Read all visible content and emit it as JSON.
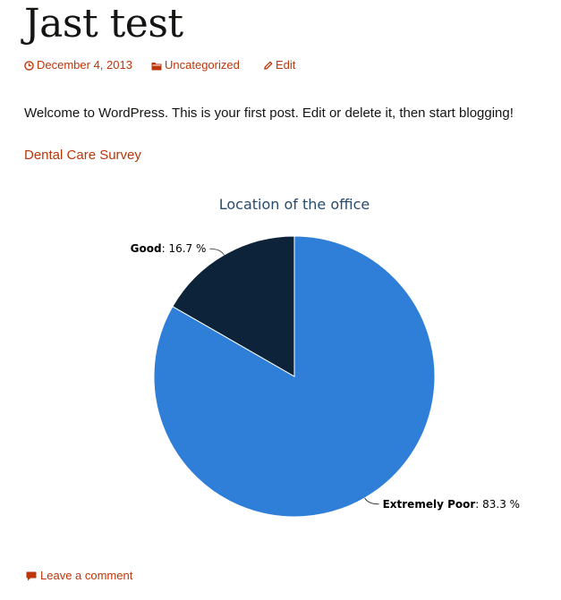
{
  "post": {
    "title": "Jast test",
    "meta": {
      "date": "December 4, 2013",
      "category": "Uncategorized",
      "edit": "Edit"
    },
    "body_text": "Welcome to WordPress. This is your first post. Edit or delete it, then start blogging!",
    "survey_link": "Dental Care Survey",
    "comment_link": "Leave a comment"
  },
  "icons": {
    "date": "clock-icon",
    "category": "folder-icon",
    "edit": "pencil-icon",
    "comment": "speech-bubble-icon"
  },
  "colors": {
    "link": "#bc360a",
    "title_text": "#141412",
    "chart_title": "#274b6d",
    "slice_extremely_poor": "#2f7ed8",
    "slice_good": "#0d233a"
  },
  "chart_data": {
    "type": "pie",
    "title": "Location of the office",
    "slices": [
      {
        "name": "Good",
        "value": 16.7,
        "label": "16.7 %",
        "color": "#0d233a"
      },
      {
        "name": "Extremely Poor",
        "value": 83.3,
        "label": "83.3 %",
        "color": "#2f7ed8"
      }
    ],
    "unit": "%"
  }
}
